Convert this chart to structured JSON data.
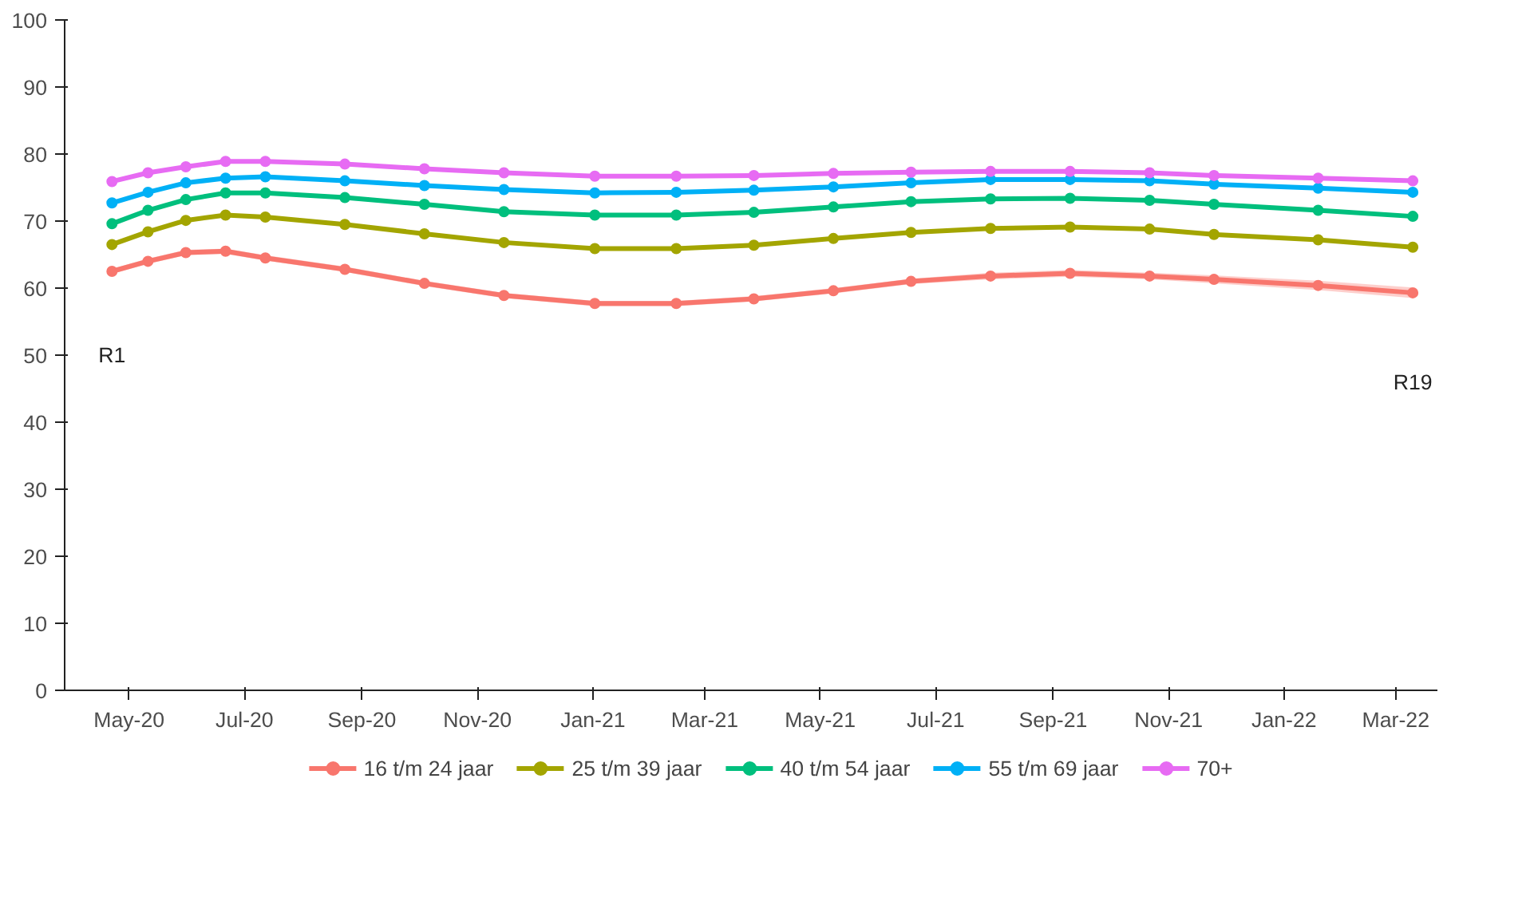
{
  "chart_data": {
    "type": "line",
    "x": [
      "2020-04-22",
      "2020-05-11",
      "2020-05-31",
      "2020-06-21",
      "2020-07-12",
      "2020-08-23",
      "2020-10-04",
      "2020-11-15",
      "2021-01-02",
      "2021-02-14",
      "2021-03-27",
      "2021-05-08",
      "2021-06-18",
      "2021-07-30",
      "2021-09-10",
      "2021-10-22",
      "2021-11-25",
      "2022-01-19",
      "2022-03-10"
    ],
    "series": [
      {
        "name": "16 t/m 24 jaar",
        "color": "#f8766d",
        "values": [
          62.5,
          64.0,
          65.3,
          65.5,
          64.5,
          62.8,
          60.7,
          58.9,
          57.7,
          57.7,
          58.4,
          59.6,
          61.0,
          61.8,
          62.2,
          61.8,
          61.3,
          60.4,
          59.3
        ],
        "lower": [
          62.1,
          63.6,
          64.9,
          65.1,
          64.1,
          62.4,
          60.3,
          58.5,
          57.3,
          57.3,
          58.0,
          59.2,
          60.6,
          61.3,
          61.7,
          61.3,
          60.7,
          59.7,
          58.5
        ],
        "upper": [
          62.9,
          64.4,
          65.7,
          65.9,
          64.9,
          63.2,
          61.1,
          59.3,
          58.1,
          58.1,
          58.8,
          60.0,
          61.4,
          62.3,
          62.7,
          62.3,
          61.9,
          61.1,
          60.1
        ]
      },
      {
        "name": "25 t/m 39 jaar",
        "color": "#a3a500",
        "values": [
          66.5,
          68.4,
          70.1,
          70.9,
          70.6,
          69.5,
          68.1,
          66.8,
          65.9,
          65.9,
          66.4,
          67.4,
          68.3,
          68.9,
          69.1,
          68.8,
          68.0,
          67.2,
          66.1
        ]
      },
      {
        "name": "40 t/m 54 jaar",
        "color": "#00bf7d",
        "values": [
          69.6,
          71.6,
          73.2,
          74.2,
          74.2,
          73.5,
          72.5,
          71.4,
          70.9,
          70.9,
          71.3,
          72.1,
          72.9,
          73.3,
          73.4,
          73.1,
          72.5,
          71.6,
          70.7
        ]
      },
      {
        "name": "55 t/m 69 jaar",
        "color": "#00b0f6",
        "values": [
          72.7,
          74.3,
          75.7,
          76.4,
          76.6,
          76.0,
          75.3,
          74.7,
          74.2,
          74.3,
          74.6,
          75.1,
          75.7,
          76.2,
          76.2,
          76.0,
          75.5,
          74.9,
          74.3
        ]
      },
      {
        "name": "70+",
        "color": "#e76bf3",
        "values": [
          75.9,
          77.2,
          78.1,
          78.9,
          78.9,
          78.5,
          77.8,
          77.2,
          76.7,
          76.7,
          76.8,
          77.1,
          77.3,
          77.4,
          77.4,
          77.2,
          76.8,
          76.4,
          76.0
        ]
      }
    ],
    "xlim": [
      "2020-03-28",
      "2022-03-23"
    ],
    "xticks": [
      {
        "value": "2020-05-01",
        "label": "May-20"
      },
      {
        "value": "2020-07-01",
        "label": "Jul-20"
      },
      {
        "value": "2020-09-01",
        "label": "Sep-20"
      },
      {
        "value": "2020-11-01",
        "label": "Nov-20"
      },
      {
        "value": "2021-01-01",
        "label": "Jan-21"
      },
      {
        "value": "2021-03-01",
        "label": "Mar-21"
      },
      {
        "value": "2021-05-01",
        "label": "May-21"
      },
      {
        "value": "2021-07-01",
        "label": "Jul-21"
      },
      {
        "value": "2021-09-01",
        "label": "Sep-21"
      },
      {
        "value": "2021-11-01",
        "label": "Nov-21"
      },
      {
        "value": "2022-01-01",
        "label": "Jan-22"
      },
      {
        "value": "2022-03-01",
        "label": "Mar-22"
      }
    ],
    "ylim": [
      0,
      100
    ],
    "yticks": [
      0,
      10,
      20,
      30,
      40,
      50,
      60,
      70,
      80,
      90,
      100
    ],
    "annotations": [
      "R1",
      "R19"
    ],
    "grid": false,
    "legend": "bottom",
    "marker": "circle",
    "line_style": "solid"
  }
}
